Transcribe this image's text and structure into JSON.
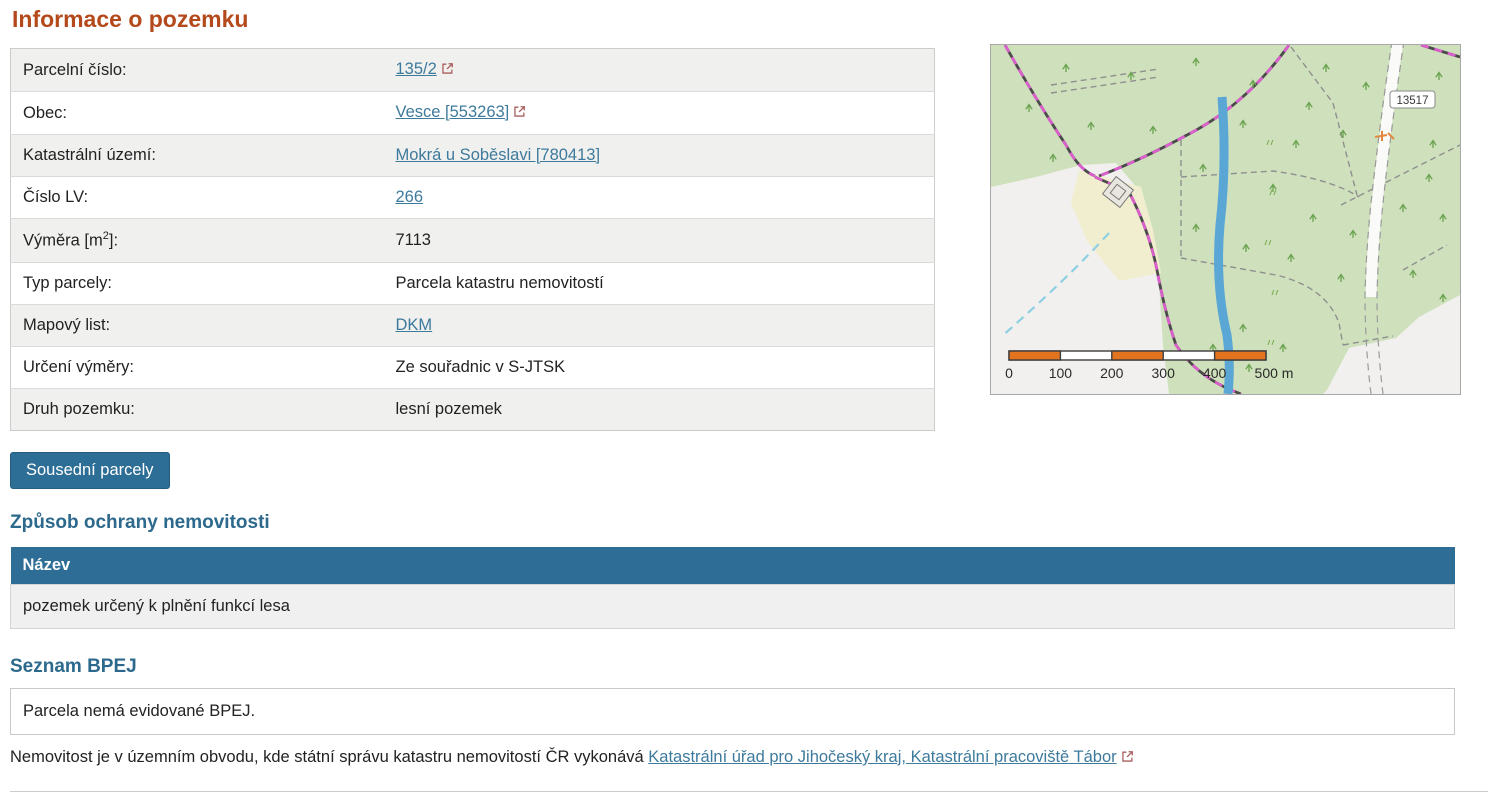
{
  "page": {
    "title": "Informace o pozemku"
  },
  "info_table": {
    "rows": [
      {
        "label": "Parcelní číslo:",
        "value": "135/2",
        "link": true,
        "external": true
      },
      {
        "label": "Obec:",
        "value": "Vesce [553263]",
        "link": true,
        "external": true
      },
      {
        "label": "Katastrální území:",
        "value": "Mokrá u Soběslavi [780413]",
        "link": true,
        "external": false
      },
      {
        "label": "Číslo LV:",
        "value": "266",
        "link": true,
        "external": false
      },
      {
        "label": "Výměra [m²]:",
        "value": "7113",
        "link": false,
        "external": false
      },
      {
        "label": "Typ parcely:",
        "value": "Parcela katastru nemovitostí",
        "link": false,
        "external": false
      },
      {
        "label": "Mapový list:",
        "value": "DKM",
        "link": true,
        "external": false
      },
      {
        "label": "Určení výměry:",
        "value": "Ze souřadnic v S-JTSK",
        "link": false,
        "external": false
      },
      {
        "label": "Druh pozemku:",
        "value": "lesní pozemek",
        "link": false,
        "external": false
      }
    ]
  },
  "map": {
    "road_badge": "13517",
    "scale_labels": [
      "0",
      "100",
      "200",
      "300",
      "400",
      "500 m"
    ]
  },
  "actions": {
    "neighbors_button": "Sousední parcely"
  },
  "protection": {
    "heading": "Způsob ochrany nemovitosti",
    "column_header": "Název",
    "rows": [
      "pozemek určený k plnění funkcí lesa"
    ]
  },
  "bpej": {
    "heading": "Seznam BPEJ",
    "message": "Parcela nemá evidované BPEJ."
  },
  "footer": {
    "text": "Nemovitost je v územním obvodu, kde státní správu katastru nemovitostí ČR vykonává ",
    "link_label": "Katastrální úřad pro Jihočeský kraj, Katastrální pracoviště Tábor"
  },
  "colors": {
    "title": "#b44a1c",
    "heading": "#2c698c",
    "link": "#3d7a9c",
    "button_bg": "#2d6e96",
    "table_header_bg": "#2e6e96",
    "row_alt_bg": "#f0f0ef",
    "external_icon": "#a95f5f",
    "scale_orange": "#e2741f",
    "forest_green": "#cfe0bc",
    "stream_blue": "#5aa7d6",
    "boundary_pink": "#da5ecb"
  }
}
